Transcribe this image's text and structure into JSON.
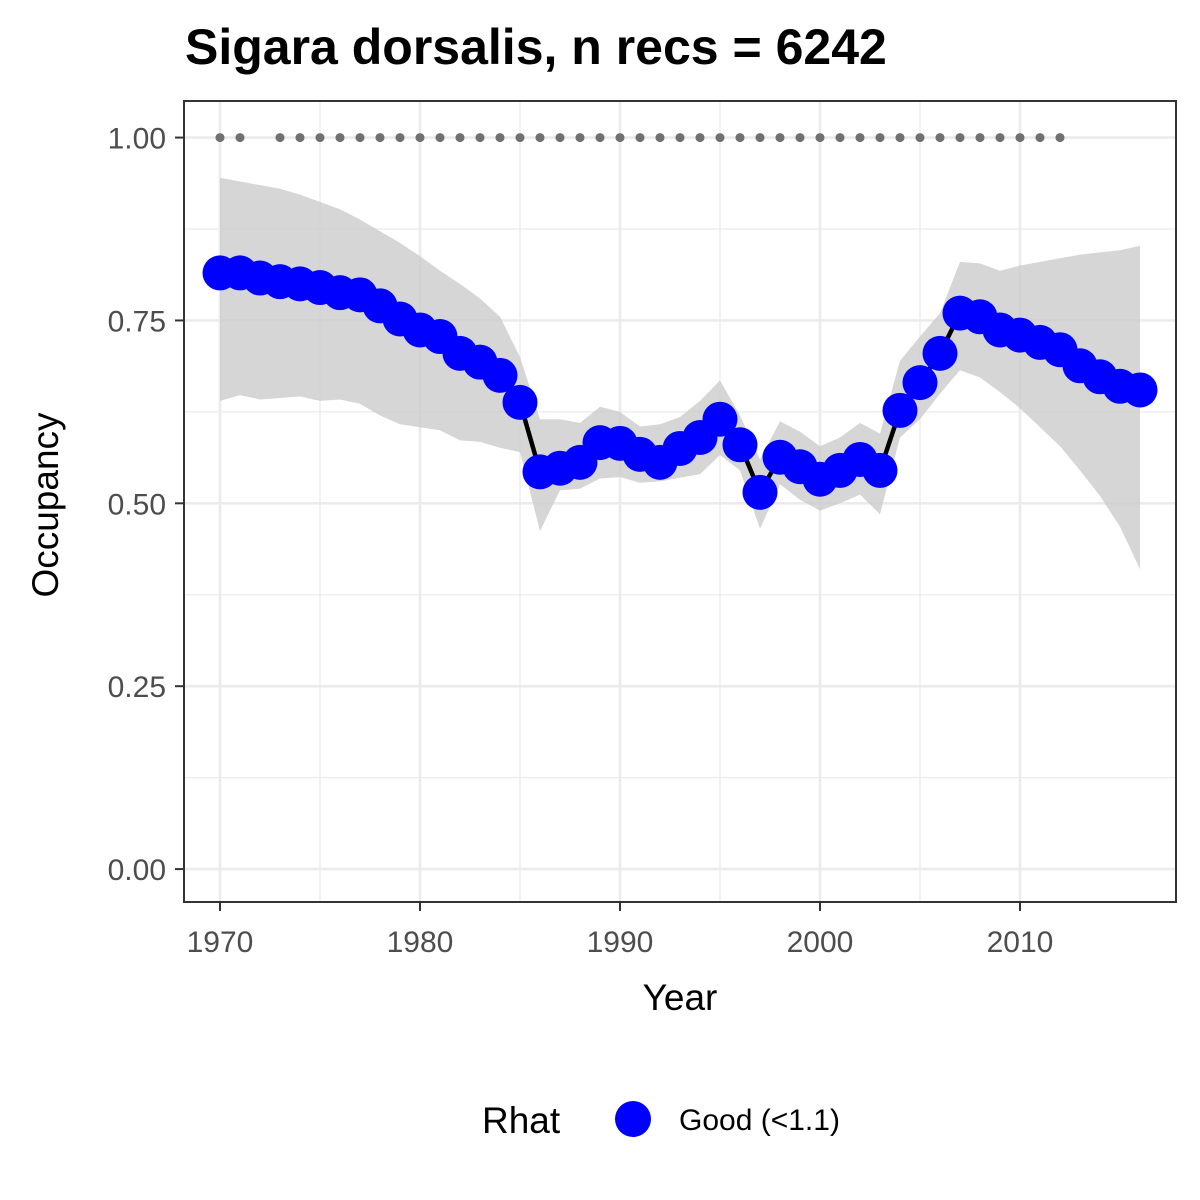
{
  "chart_data": {
    "type": "line",
    "title": "Sigara dorsalis, n recs = 6242",
    "xlabel": "Year",
    "ylabel": "Occupancy",
    "xlim": [
      1968.2,
      2017.8
    ],
    "ylim": [
      -0.045,
      1.05
    ],
    "x_ticks": [
      1970,
      1980,
      1990,
      2000,
      2010
    ],
    "y_ticks": [
      "0.00",
      "0.25",
      "0.50",
      "0.75",
      "1.00"
    ],
    "grid": true,
    "legend_position": "bottom",
    "colors": {
      "points": "#0000ff",
      "line": "#000000",
      "ribbon": "#cccccc",
      "records": "#707070"
    },
    "series": [
      {
        "x": [
          1970,
          1971,
          1972,
          1973,
          1974,
          1975,
          1976,
          1977,
          1978,
          1979,
          1980,
          1981,
          1982,
          1983,
          1984,
          1985,
          1986,
          1987,
          1988,
          1989,
          1990,
          1991,
          1992,
          1993,
          1994,
          1995,
          1996,
          1997,
          1998,
          1999,
          2000,
          2001,
          2002,
          2003,
          2004,
          2005,
          2006,
          2007,
          2008,
          2009,
          2010,
          2011,
          2012,
          2013,
          2014,
          2015,
          2016
        ],
        "values": [
          0.815,
          0.815,
          0.808,
          0.803,
          0.8,
          0.795,
          0.788,
          0.785,
          0.77,
          0.752,
          0.737,
          0.728,
          0.705,
          0.693,
          0.675,
          0.638,
          0.543,
          0.548,
          0.556,
          0.583,
          0.582,
          0.567,
          0.556,
          0.575,
          0.59,
          0.615,
          0.58,
          0.515,
          0.563,
          0.55,
          0.533,
          0.545,
          0.56,
          0.545,
          0.627,
          0.665,
          0.705,
          0.76,
          0.755,
          0.737,
          0.73,
          0.72,
          0.71,
          0.688,
          0.673,
          0.66,
          0.655
        ],
        "lower": [
          0.64,
          0.648,
          0.642,
          0.644,
          0.646,
          0.64,
          0.642,
          0.636,
          0.62,
          0.608,
          0.604,
          0.6,
          0.586,
          0.584,
          0.576,
          0.57,
          0.462,
          0.518,
          0.52,
          0.534,
          0.536,
          0.528,
          0.53,
          0.535,
          0.54,
          0.566,
          0.545,
          0.465,
          0.526,
          0.505,
          0.49,
          0.5,
          0.512,
          0.485,
          0.59,
          0.615,
          0.65,
          0.682,
          0.672,
          0.652,
          0.63,
          0.604,
          0.578,
          0.545,
          0.51,
          0.468,
          0.41
        ],
        "upper": [
          0.945,
          0.94,
          0.935,
          0.93,
          0.922,
          0.912,
          0.902,
          0.888,
          0.872,
          0.856,
          0.838,
          0.818,
          0.8,
          0.78,
          0.755,
          0.7,
          0.615,
          0.615,
          0.61,
          0.632,
          0.625,
          0.605,
          0.608,
          0.618,
          0.64,
          0.668,
          0.62,
          0.56,
          0.612,
          0.598,
          0.578,
          0.59,
          0.61,
          0.595,
          0.695,
          0.728,
          0.76,
          0.83,
          0.828,
          0.818,
          0.825,
          0.83,
          0.835,
          0.84,
          0.843,
          0.846,
          0.852
        ],
        "name": "Good (<1.1)"
      }
    ],
    "record_years": [
      1970,
      1971,
      1973,
      1974,
      1975,
      1976,
      1977,
      1978,
      1979,
      1980,
      1981,
      1982,
      1983,
      1984,
      1985,
      1986,
      1987,
      1988,
      1989,
      1990,
      1991,
      1992,
      1993,
      1994,
      1995,
      1996,
      1997,
      1998,
      1999,
      2000,
      2001,
      2002,
      2003,
      2004,
      2005,
      2006,
      2007,
      2008,
      2009,
      2010,
      2011,
      2012
    ],
    "record_value": 1.0,
    "legend": {
      "title": "Rhat",
      "label": "Good (<1.1)"
    }
  }
}
